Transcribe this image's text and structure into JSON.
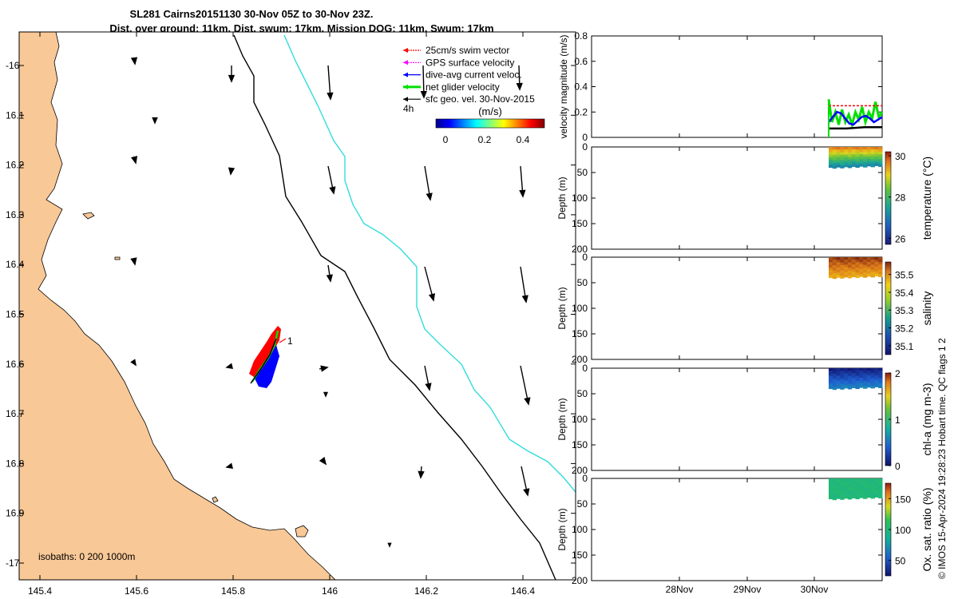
{
  "title": {
    "line1": "SL281 Cairns20151130 30-Nov 05Z to 30-Nov 23Z.",
    "line2": "Dist. over ground: 11km. Dist. swum: 17km. Mission DOG: 11km. Swum: 17km"
  },
  "legend": {
    "items": [
      {
        "label": "25cm/s swim vector",
        "color": "#ff0000"
      },
      {
        "label": "GPS surface velocity",
        "color": "#ff00ff"
      },
      {
        "label": "dive-avg current veloc.",
        "color": "#0000ff"
      },
      {
        "label": "net glider velocity",
        "color": "#00e000"
      },
      {
        "label": "sfc geo. vel. 30-Nov-2015",
        "color": "#000000"
      }
    ],
    "time_label": "4h",
    "colorbar_title": "(m/s)",
    "colorbar_ticks": [
      "0",
      "0.2",
      "0.4"
    ]
  },
  "map": {
    "xticks": [
      "145.4",
      "145.6",
      "145.8",
      "146",
      "146.2",
      "146.4"
    ],
    "yticks": [
      "-16",
      "16.1",
      "16.2",
      "16.3",
      "16.4",
      "16.5",
      "16.6",
      "16.7",
      "16.8",
      "16.9",
      "-17"
    ],
    "isobaths_label": "isobaths: 0   200  1000m",
    "marker_label": "1",
    "land_color": "#f9c897",
    "isobath_200_color": "#000000",
    "isobath_1000_color": "#33dddd"
  },
  "credit": "© IMOS 15-Apr-2024 19:28:23 Hobart time. QC flags 1  2",
  "chart_data": [
    {
      "type": "line",
      "panel": "velocity",
      "ylabel": "velocity magnitude (m/s)",
      "ylim": [
        0,
        0.8
      ],
      "yticks": [
        "0",
        "0.2",
        "0.4",
        "0.6",
        "0.8"
      ],
      "xticks": [
        "28Nov",
        "29Nov",
        "30Nov"
      ],
      "series": [
        {
          "name": "net glider velocity",
          "color": "#00e000",
          "values": [
            0.3,
            0.12,
            0.2,
            0.1,
            0.22,
            0.12,
            0.18,
            0.1,
            0.2,
            0.14,
            0.24,
            0.12,
            0.2,
            0.15,
            0.28,
            0.16,
            0.2
          ]
        },
        {
          "name": "dive-avg current veloc.",
          "color": "#0000ff",
          "values": [
            0.12,
            0.16,
            0.2,
            0.19,
            0.15,
            0.11,
            0.1,
            0.13,
            0.16,
            0.17,
            0.15,
            0.12,
            0.14,
            0.16
          ]
        },
        {
          "name": "25cm/s swim vector",
          "color": "#ff0000",
          "values": [
            0.25,
            0.25,
            0.25,
            0.25
          ]
        },
        {
          "name": "sfc geo. vel. 30-Nov-2015",
          "color": "#000000",
          "values": [
            0.07,
            0.07,
            0.08,
            0.08
          ]
        }
      ]
    },
    {
      "type": "heatmap",
      "panel": "temperature",
      "ylabel": "Depth (m)",
      "colorbar_label": "temperature (°C)",
      "ylim": [
        200,
        0
      ],
      "yticks": [
        "0",
        "50",
        "100",
        "150",
        "200"
      ],
      "colorbar_ticks": [
        "26",
        "28",
        "30"
      ],
      "clim": [
        25.7,
        30.2
      ],
      "depth_range": [
        0,
        40
      ],
      "surface_value": 29.8,
      "bottom_value": 27.0
    },
    {
      "type": "heatmap",
      "panel": "salinity",
      "ylabel": "Depth (m)",
      "colorbar_label": "salinity",
      "ylim": [
        200,
        0
      ],
      "yticks": [
        "0",
        "50",
        "100",
        "150",
        "200"
      ],
      "colorbar_ticks": [
        "35.1",
        "35.2",
        "35.3",
        "35.4",
        "35.5"
      ],
      "clim": [
        35.05,
        35.57
      ],
      "depth_range": [
        0,
        40
      ],
      "surface_value": 35.56,
      "bottom_value": 35.47
    },
    {
      "type": "heatmap",
      "panel": "chl-a",
      "ylabel": "Depth (m)",
      "colorbar_label": "chl-a (mg m-3)",
      "ylim": [
        200,
        0
      ],
      "yticks": [
        "0",
        "50",
        "100",
        "150",
        "200"
      ],
      "colorbar_ticks": [
        "0",
        "1",
        "2"
      ],
      "clim": [
        0,
        2
      ],
      "depth_range": [
        0,
        40
      ],
      "surface_value": 0.05,
      "bottom_value": 0.6
    },
    {
      "type": "heatmap",
      "panel": "oxygen",
      "ylabel": "Depth (m)",
      "colorbar_label": "Ox. sat. ratio (%)",
      "ylim": [
        200,
        0
      ],
      "yticks": [
        "0",
        "50",
        "100",
        "150",
        "200"
      ],
      "colorbar_ticks": [
        "50",
        "100",
        "150"
      ],
      "clim": [
        25,
        175
      ],
      "depth_range": [
        0,
        40
      ],
      "surface_value": 100,
      "bottom_value": 100
    }
  ]
}
